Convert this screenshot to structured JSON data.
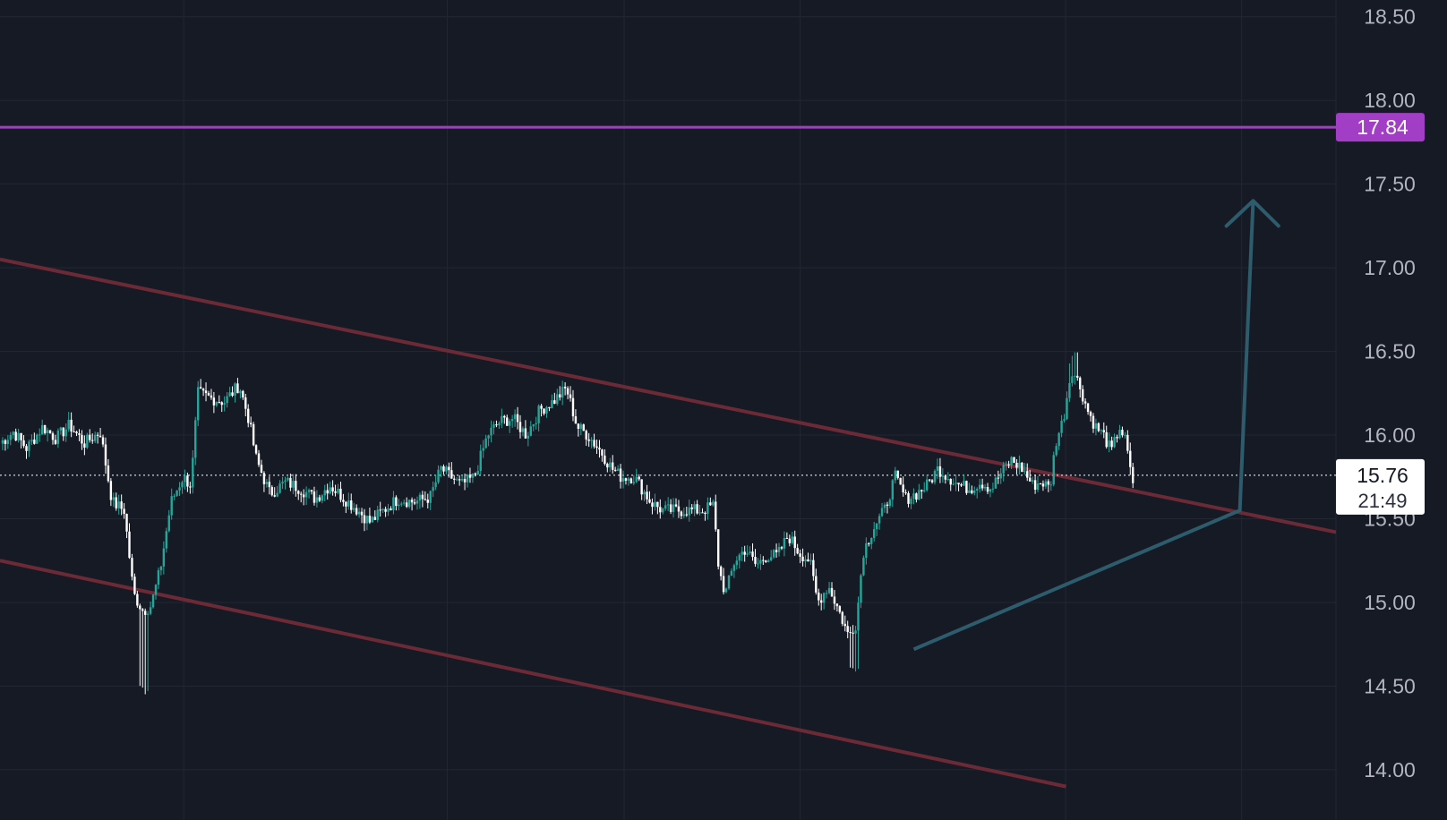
{
  "colors": {
    "background": "#161a25",
    "grid": "#232734",
    "axis_text": "#b2b5be",
    "candle_up": "#26a69a",
    "candle_down": "#ffffff",
    "channel": "#6b2a36",
    "resistance": "#a23dc6",
    "projection": "#2d5c6c",
    "price_line": "#d1d4dc"
  },
  "chart_data": {
    "type": "candlestick",
    "ylim": [
      13.7,
      18.6
    ],
    "y_ticks": [
      "14.00",
      "14.50",
      "15.00",
      "15.50",
      "16.00",
      "16.50",
      "17.00",
      "17.50",
      "18.00",
      "18.50"
    ],
    "x_range": [
      0,
      1
    ],
    "vertical_grid": [
      0.1375,
      0.3348,
      0.4672,
      0.599,
      0.7976,
      0.9294
    ],
    "price_path": [
      [
        0.0,
        15.95
      ],
      [
        0.01,
        16.02
      ],
      [
        0.02,
        15.92
      ],
      [
        0.032,
        16.05
      ],
      [
        0.042,
        15.98
      ],
      [
        0.052,
        16.06
      ],
      [
        0.063,
        15.95
      ],
      [
        0.075,
        16.02
      ],
      [
        0.084,
        15.6
      ],
      [
        0.093,
        15.55
      ],
      [
        0.1,
        15.05
      ],
      [
        0.107,
        14.95
      ],
      [
        0.113,
        14.98
      ],
      [
        0.12,
        15.2
      ],
      [
        0.128,
        15.6
      ],
      [
        0.137,
        15.75
      ],
      [
        0.143,
        15.7
      ],
      [
        0.148,
        16.25
      ],
      [
        0.158,
        16.22
      ],
      [
        0.168,
        16.2
      ],
      [
        0.179,
        16.3
      ],
      [
        0.186,
        16.1
      ],
      [
        0.192,
        15.85
      ],
      [
        0.202,
        15.65
      ],
      [
        0.214,
        15.72
      ],
      [
        0.225,
        15.68
      ],
      [
        0.236,
        15.62
      ],
      [
        0.247,
        15.7
      ],
      [
        0.258,
        15.62
      ],
      [
        0.268,
        15.55
      ],
      [
        0.277,
        15.48
      ],
      [
        0.287,
        15.55
      ],
      [
        0.298,
        15.62
      ],
      [
        0.31,
        15.6
      ],
      [
        0.322,
        15.63
      ],
      [
        0.33,
        15.8
      ],
      [
        0.345,
        15.7
      ],
      [
        0.355,
        15.75
      ],
      [
        0.365,
        16.0
      ],
      [
        0.374,
        16.08
      ],
      [
        0.384,
        16.1
      ],
      [
        0.394,
        16.0
      ],
      [
        0.404,
        16.15
      ],
      [
        0.414,
        16.2
      ],
      [
        0.424,
        16.28
      ],
      [
        0.432,
        16.05
      ],
      [
        0.44,
        16.0
      ],
      [
        0.45,
        15.9
      ],
      [
        0.458,
        15.8
      ],
      [
        0.465,
        15.75
      ],
      [
        0.475,
        15.75
      ],
      [
        0.487,
        15.6
      ],
      [
        0.496,
        15.55
      ],
      [
        0.506,
        15.55
      ],
      [
        0.516,
        15.55
      ],
      [
        0.526,
        15.55
      ],
      [
        0.534,
        15.58
      ],
      [
        0.538,
        15.2
      ],
      [
        0.543,
        15.05
      ],
      [
        0.55,
        15.25
      ],
      [
        0.558,
        15.32
      ],
      [
        0.566,
        15.22
      ],
      [
        0.574,
        15.28
      ],
      [
        0.582,
        15.28
      ],
      [
        0.59,
        15.4
      ],
      [
        0.598,
        15.3
      ],
      [
        0.606,
        15.25
      ],
      [
        0.612,
        15.0
      ],
      [
        0.62,
        15.1
      ],
      [
        0.628,
        14.95
      ],
      [
        0.635,
        14.8
      ],
      [
        0.641,
        14.88
      ],
      [
        0.646,
        15.3
      ],
      [
        0.654,
        15.45
      ],
      [
        0.662,
        15.55
      ],
      [
        0.67,
        15.75
      ],
      [
        0.678,
        15.62
      ],
      [
        0.686,
        15.65
      ],
      [
        0.694,
        15.7
      ],
      [
        0.702,
        15.8
      ],
      [
        0.71,
        15.75
      ],
      [
        0.718,
        15.7
      ],
      [
        0.726,
        15.68
      ],
      [
        0.734,
        15.72
      ],
      [
        0.742,
        15.68
      ],
      [
        0.75,
        15.78
      ],
      [
        0.757,
        15.85
      ],
      [
        0.765,
        15.8
      ],
      [
        0.773,
        15.7
      ],
      [
        0.78,
        15.72
      ],
      [
        0.786,
        15.68
      ],
      [
        0.79,
        15.95
      ],
      [
        0.796,
        16.1
      ],
      [
        0.802,
        16.4
      ],
      [
        0.808,
        16.3
      ],
      [
        0.814,
        16.15
      ],
      [
        0.82,
        16.05
      ],
      [
        0.826,
        16.0
      ],
      [
        0.832,
        15.9
      ],
      [
        0.838,
        16.05
      ],
      [
        0.843,
        15.95
      ],
      [
        0.846,
        15.78
      ],
      [
        0.848,
        15.72
      ]
    ],
    "channel_upper": [
      [
        0.0,
        17.05
      ],
      [
        1.0,
        15.42
      ]
    ],
    "channel_lower": [
      [
        0.0,
        15.25
      ],
      [
        0.798,
        13.9
      ]
    ],
    "resistance": {
      "price": 17.84,
      "label": "17.84"
    },
    "projection": {
      "path": [
        [
          0.684,
          14.72
        ],
        [
          0.928,
          15.55
        ],
        [
          0.938,
          17.4
        ]
      ],
      "arrow_left": [
        0.918,
        17.25
      ],
      "arrow_right": [
        0.957,
        17.25
      ]
    },
    "current_price": {
      "price": 15.76,
      "label": "15.76",
      "countdown": "21:49"
    }
  }
}
